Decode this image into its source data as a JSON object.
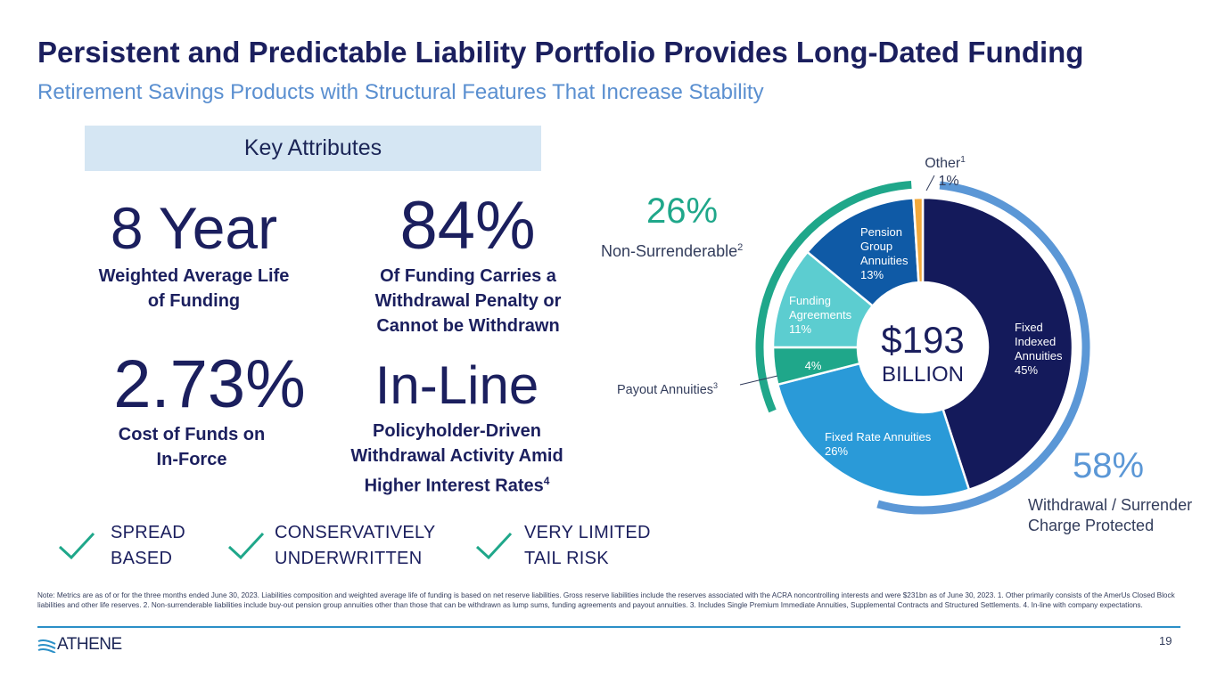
{
  "header": {
    "title": "Persistent and Predictable Liability Portfolio Provides Long-Dated Funding",
    "subtitle": "Retirement Savings Products with Structural Features That Increase Stability"
  },
  "key_attributes": {
    "label": "Key Attributes",
    "items": [
      {
        "big": "8 Year",
        "desc_line1": "Weighted Average Life",
        "desc_line2": "of Funding"
      },
      {
        "big": "84%",
        "desc_line1": "Of Funding Carries a",
        "desc_line2": "Withdrawal Penalty or",
        "desc_line3": "Cannot be Withdrawn"
      },
      {
        "big": "2.73%",
        "desc_line1": "Cost of Funds on",
        "desc_line2": "In-Force"
      },
      {
        "big": "In-Line",
        "desc_line1": "Policyholder-Driven",
        "desc_line2": "Withdrawal Activity Amid",
        "desc_line3": "Higher Interest Rates",
        "desc_sup": "4"
      }
    ]
  },
  "features": [
    {
      "line1": "SPREAD",
      "line2": "BASED",
      "icon": "check-icon"
    },
    {
      "line1": "CONSERVATIVELY",
      "line2": "UNDERWRITTEN",
      "icon": "check-icon"
    },
    {
      "line1": "VERY LIMITED",
      "line2": "TAIL RISK",
      "icon": "check-icon"
    }
  ],
  "chart_data": {
    "type": "pie",
    "center_value": "$193",
    "center_unit": "BILLION",
    "slices": [
      {
        "label_lines": [
          "Fixed",
          "Indexed",
          "Annuities"
        ],
        "pct_text": "45%",
        "value": 45,
        "color": "#141a5b"
      },
      {
        "label_lines": [
          "Fixed Rate Annuities"
        ],
        "pct_text": "26%",
        "value": 26,
        "color": "#2a9ad8"
      },
      {
        "label_lines": [],
        "pct_text": "4%",
        "value": 4,
        "color": "#1fa78a"
      },
      {
        "label_lines": [
          "Funding",
          "Agreements"
        ],
        "pct_text": "11%",
        "value": 11,
        "color": "#5ccdd0"
      },
      {
        "label_lines": [
          "Pension",
          "Group",
          "Annuities"
        ],
        "pct_text": "13%",
        "value": 13,
        "color": "#0f5aa6"
      },
      {
        "label_lines": [],
        "pct_text": "1%",
        "value": 1,
        "color": "#f2a93b"
      }
    ],
    "callouts": {
      "other": {
        "label": "Other",
        "sup": "1",
        "pct": "1%"
      },
      "payout": {
        "label": "Payout Annuities",
        "sup": "3"
      }
    },
    "groups": [
      {
        "pct": "26%",
        "label": "Non-Surrenderable",
        "sup": "2",
        "color": "#1fa78a"
      },
      {
        "pct": "58%",
        "label_line1": "Withdrawal / Surrender",
        "label_line2": "Charge Protected",
        "color": "#5b97d6"
      }
    ]
  },
  "footer": {
    "note": "Note: Metrics are as of or for the three months ended June 30, 2023. Liabilities composition and weighted average life of funding is based on net reserve liabilities. Gross reserve liabilities include the reserves associated with the ACRA noncontrolling interests and were $231bn as of June 30, 2023. 1. Other primarily consists of the AmerUs Closed Block liabilities and other life reserves. 2. Non-surrenderable liabilities include buy-out pension group annuities other than those that can be withdrawn as lump sums, funding agreements and payout annuities. 3. Includes Single Premium Immediate Annuities, Supplemental Contracts and Structured Settlements. 4. In-line with company expectations.",
    "logo_text": "ATHENE",
    "page_number": "19"
  }
}
